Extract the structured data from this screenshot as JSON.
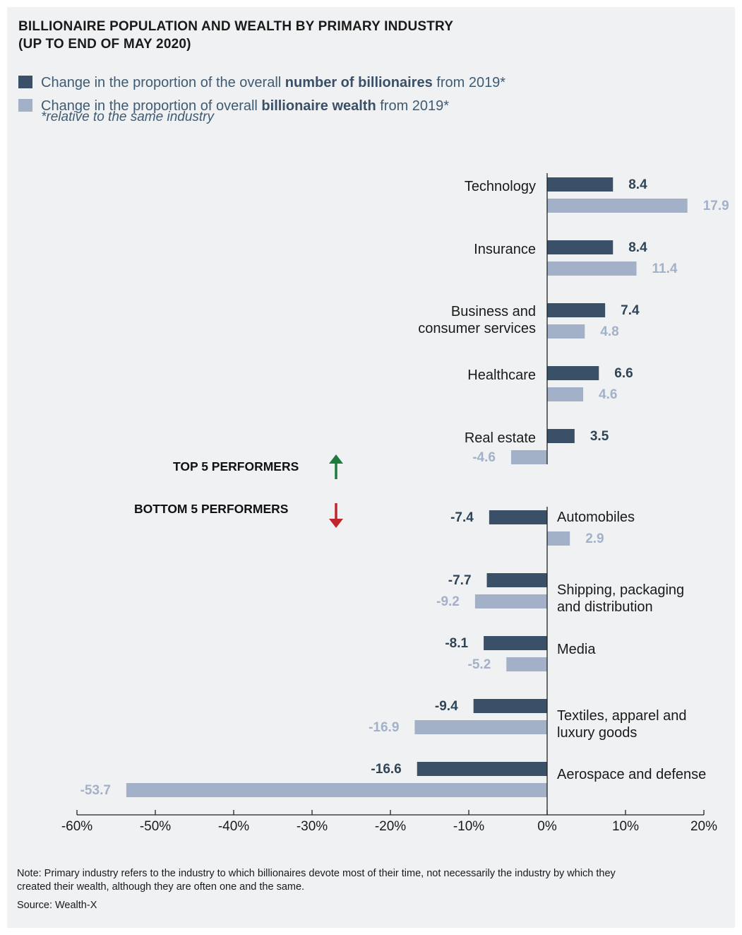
{
  "title_line1": "BILLIONAIRE POPULATION AND WEALTH BY PRIMARY INDUSTRY",
  "title_line2": "(UP TO END OF MAY 2020)",
  "legend": {
    "series1": {
      "pre": "Change in the proportion of the overall ",
      "bold": "number of billionaires",
      "post": " from 2019*"
    },
    "series2": {
      "pre": "Change in the proportion of overall ",
      "bold": "billionaire wealth",
      "post": " from 2019*"
    },
    "note": "*relative to the same industry"
  },
  "top_label": "TOP 5 PERFORMERS",
  "bottom_label": "BOTTOM 5 PERFORMERS",
  "colors": {
    "series1": "#3a5068",
    "series2": "#a3b1c8",
    "up_arrow": "#1e7a3d",
    "down_arrow": "#c0272d"
  },
  "chart_data": {
    "type": "bar",
    "orientation": "horizontal",
    "xlim": [
      -60,
      20
    ],
    "ticks": [
      "-60%",
      "-50%",
      "-40%",
      "-30%",
      "-20%",
      "-10%",
      "0%",
      "10%",
      "20%"
    ],
    "tick_values": [
      -60,
      -50,
      -40,
      -30,
      -20,
      -10,
      0,
      10,
      20
    ],
    "series": [
      {
        "name": "Change in the proportion of the overall number of billionaires from 2019*",
        "values": [
          8.4,
          8.4,
          7.4,
          6.6,
          3.5,
          -7.4,
          -7.7,
          -8.1,
          -9.4,
          -16.6
        ],
        "labels": [
          "8.4",
          "8.4",
          "7.4",
          "6.6",
          "3.5",
          "-7.4",
          "-7.7",
          "-8.1",
          "-9.4",
          "-16.6"
        ]
      },
      {
        "name": "Change in the proportion of overall billionaire wealth from 2019*",
        "values": [
          17.9,
          11.4,
          4.8,
          4.6,
          -4.6,
          2.9,
          -9.2,
          -5.2,
          -16.9,
          -53.7
        ],
        "labels": [
          "17.9",
          "11.4",
          "4.8",
          "4.6",
          "-4.6",
          "2.9",
          "-9.2",
          "-5.2",
          "-16.9",
          "-53.7"
        ]
      }
    ],
    "categories": [
      {
        "group": "top",
        "lines": [
          "Technology"
        ]
      },
      {
        "group": "top",
        "lines": [
          "Insurance"
        ]
      },
      {
        "group": "top",
        "lines": [
          "Business and",
          "consumer services"
        ]
      },
      {
        "group": "top",
        "lines": [
          "Healthcare"
        ]
      },
      {
        "group": "top",
        "lines": [
          "Real estate"
        ]
      },
      {
        "group": "bottom",
        "lines": [
          "Automobiles"
        ]
      },
      {
        "group": "bottom",
        "lines": [
          "Shipping, packaging",
          "and distribution"
        ]
      },
      {
        "group": "bottom",
        "lines": [
          "Media"
        ]
      },
      {
        "group": "bottom",
        "lines": [
          "Textiles, apparel and",
          "luxury goods"
        ]
      },
      {
        "group": "bottom",
        "lines": [
          "Aerospace and defense"
        ]
      }
    ]
  },
  "note": "Note: Primary industry refers to the industry to which billionaires devote most of their time, not necessarily the industry by which they created their wealth, although they are often one and the same.",
  "source": "Source: Wealth-X"
}
